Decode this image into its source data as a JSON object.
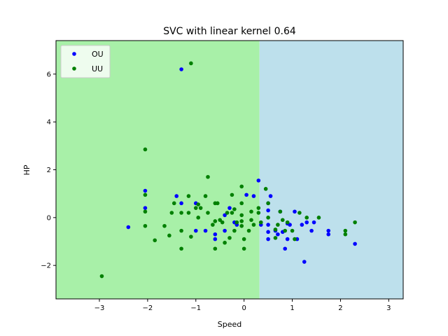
{
  "chart_data": {
    "type": "scatter",
    "title": "SVC with linear kernel 0.64",
    "xlabel": "Speed",
    "ylabel": "HP",
    "xlim": [
      -3.9,
      3.3
    ],
    "ylim": [
      -3.4,
      7.4
    ],
    "xticks": [
      -3,
      -2,
      -1,
      0,
      1,
      2,
      3
    ],
    "yticks": [
      -2,
      0,
      2,
      4,
      6
    ],
    "grid": false,
    "legend_position": "top-left",
    "decision_boundary_x": 0.32,
    "regions": [
      {
        "side": "left",
        "color": "#a8f0a8"
      },
      {
        "side": "right",
        "color": "#bde0ec"
      }
    ],
    "series": [
      {
        "name": "OU",
        "color": "#0000ff",
        "points": [
          [
            -1.3,
            6.2
          ],
          [
            -2.4,
            -0.4
          ],
          [
            -2.05,
            1.12
          ],
          [
            -2.05,
            0.4
          ],
          [
            -1.4,
            0.9
          ],
          [
            -1.3,
            0.6
          ],
          [
            -1.0,
            0.6
          ],
          [
            -1.0,
            -0.55
          ],
          [
            -0.8,
            -0.55
          ],
          [
            -0.6,
            -0.7
          ],
          [
            -0.6,
            -0.9
          ],
          [
            -0.4,
            -0.55
          ],
          [
            -0.4,
            0.1
          ],
          [
            -0.3,
            0.4
          ],
          [
            -0.2,
            -0.2
          ],
          [
            -0.15,
            -0.3
          ],
          [
            0.05,
            0.95
          ],
          [
            0.2,
            0.9
          ],
          [
            0.3,
            1.55
          ],
          [
            0.35,
            -0.3
          ],
          [
            0.5,
            0.6
          ],
          [
            0.5,
            0.3
          ],
          [
            0.5,
            -0.3
          ],
          [
            0.5,
            -0.6
          ],
          [
            0.5,
            -0.9
          ],
          [
            0.55,
            0.9
          ],
          [
            0.7,
            -0.7
          ],
          [
            0.75,
            0.25
          ],
          [
            0.8,
            -0.6
          ],
          [
            0.85,
            -1.3
          ],
          [
            0.9,
            -0.9
          ],
          [
            0.95,
            -0.3
          ],
          [
            1.05,
            0.25
          ],
          [
            1.1,
            -0.9
          ],
          [
            1.2,
            -0.3
          ],
          [
            1.25,
            -1.85
          ],
          [
            1.3,
            -0.2
          ],
          [
            1.4,
            -0.55
          ],
          [
            1.45,
            -0.2
          ],
          [
            1.75,
            -0.55
          ],
          [
            1.75,
            -0.7
          ],
          [
            2.3,
            -1.1
          ],
          [
            0.9,
            -0.25
          ],
          [
            0.65,
            -0.55
          ]
        ]
      },
      {
        "name": "UU",
        "color": "#008000",
        "points": [
          [
            -1.1,
            6.45
          ],
          [
            -2.95,
            -2.45
          ],
          [
            -2.05,
            2.85
          ],
          [
            -2.05,
            0.95
          ],
          [
            -2.05,
            0.25
          ],
          [
            -2.05,
            -0.35
          ],
          [
            -1.85,
            -0.95
          ],
          [
            -1.65,
            -0.35
          ],
          [
            -1.55,
            -0.75
          ],
          [
            -1.5,
            0.2
          ],
          [
            -1.45,
            0.6
          ],
          [
            -1.3,
            0.2
          ],
          [
            -1.3,
            -0.55
          ],
          [
            -1.3,
            -1.3
          ],
          [
            -1.15,
            0.9
          ],
          [
            -1.15,
            0.2
          ],
          [
            -1.1,
            -0.8
          ],
          [
            -1.0,
            0.4
          ],
          [
            -0.95,
            0.55
          ],
          [
            -0.95,
            0.0
          ],
          [
            -0.9,
            0.4
          ],
          [
            -0.8,
            0.9
          ],
          [
            -0.75,
            0.2
          ],
          [
            -0.75,
            1.7
          ],
          [
            -0.65,
            -0.3
          ],
          [
            -0.6,
            0.6
          ],
          [
            -0.6,
            -0.15
          ],
          [
            -0.6,
            -1.3
          ],
          [
            -0.55,
            0.6
          ],
          [
            -0.5,
            -0.1
          ],
          [
            -0.45,
            -0.2
          ],
          [
            -0.4,
            -1.05
          ],
          [
            -0.35,
            0.2
          ],
          [
            -0.3,
            -0.85
          ],
          [
            -0.25,
            0.95
          ],
          [
            -0.25,
            0.2
          ],
          [
            -0.2,
            0.35
          ],
          [
            -0.2,
            -0.55
          ],
          [
            -0.15,
            -0.2
          ],
          [
            -0.05,
            0.1
          ],
          [
            -0.05,
            -0.15
          ],
          [
            -0.05,
            -0.35
          ],
          [
            -0.05,
            0.6
          ],
          [
            -0.05,
            1.3
          ],
          [
            0.0,
            -0.9
          ],
          [
            0.0,
            -1.3
          ],
          [
            0.1,
            -0.55
          ],
          [
            0.15,
            0.25
          ],
          [
            0.15,
            -0.1
          ],
          [
            0.2,
            -0.3
          ],
          [
            0.3,
            0.4
          ],
          [
            0.3,
            0.2
          ],
          [
            0.35,
            -0.2
          ],
          [
            0.45,
            1.2
          ],
          [
            0.5,
            0.6
          ],
          [
            0.5,
            0.0
          ],
          [
            0.65,
            -0.85
          ],
          [
            0.65,
            -0.5
          ],
          [
            0.7,
            -0.3
          ],
          [
            0.75,
            0.25
          ],
          [
            0.8,
            -0.1
          ],
          [
            0.85,
            -0.55
          ],
          [
            0.9,
            -0.2
          ],
          [
            1.0,
            -0.55
          ],
          [
            1.05,
            -0.9
          ],
          [
            1.15,
            0.2
          ],
          [
            1.3,
            0.0
          ],
          [
            1.55,
            0.0
          ],
          [
            2.1,
            -0.55
          ],
          [
            2.1,
            -0.7
          ],
          [
            2.3,
            -0.2
          ]
        ]
      }
    ]
  }
}
